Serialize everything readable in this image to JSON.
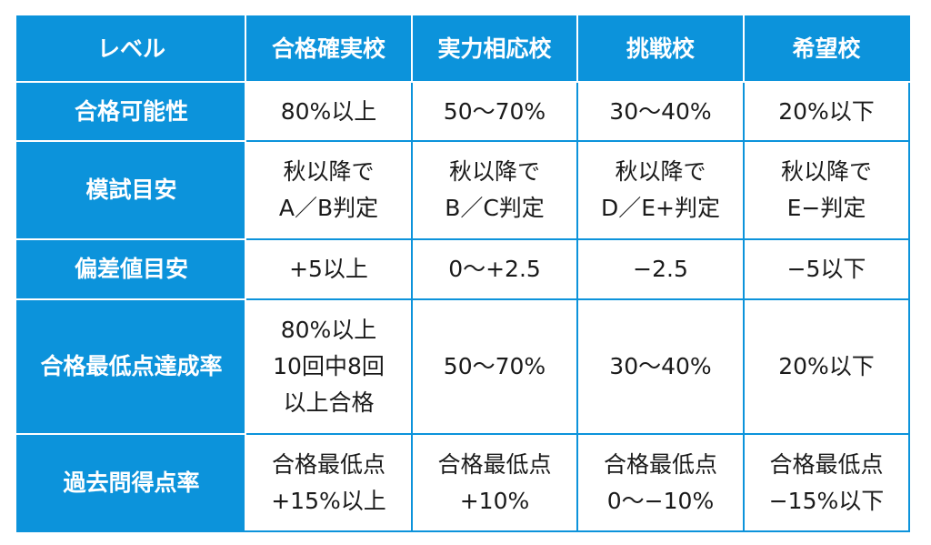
{
  "header": {
    "corner": "レベル",
    "columns": [
      "合格確実校",
      "実力相応校",
      "挑戦校",
      "希望校"
    ]
  },
  "rows": [
    {
      "label": "合格可能性",
      "cells": [
        [
          "80%以上"
        ],
        [
          "50〜70%"
        ],
        [
          "30〜40%"
        ],
        [
          "20%以下"
        ]
      ]
    },
    {
      "label": "模試目安",
      "cells": [
        [
          "秋以降で",
          "A／B判定"
        ],
        [
          "秋以降で",
          "B／C判定"
        ],
        [
          "秋以降で",
          "D／E+判定"
        ],
        [
          "秋以降で",
          "E−判定"
        ]
      ]
    },
    {
      "label": "偏差値目安",
      "cells": [
        [
          "+5以上"
        ],
        [
          "0〜+2.5"
        ],
        [
          "−2.5"
        ],
        [
          "−5以下"
        ]
      ]
    },
    {
      "label": "合格最低点達成率",
      "cells": [
        [
          "80%以上",
          "10回中8回",
          "以上合格"
        ],
        [
          "50〜70%"
        ],
        [
          "30〜40%"
        ],
        [
          "20%以下"
        ]
      ]
    },
    {
      "label": "過去問得点率",
      "cells": [
        [
          "合格最低点",
          "+15%以上"
        ],
        [
          "合格最低点",
          "+10%"
        ],
        [
          "合格最低点",
          "0〜−10%"
        ],
        [
          "合格最低点",
          "−15%以下"
        ]
      ]
    }
  ],
  "colors": {
    "header_bg": "#0c93db",
    "header_text": "#ffffff",
    "cell_bg": "#ffffff",
    "cell_text": "#1a1a1a"
  }
}
